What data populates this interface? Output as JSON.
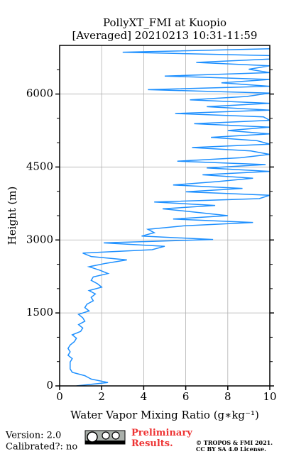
{
  "chart_data": {
    "type": "line",
    "title": "PollyXT_FMI at Kuopio",
    "subtitle": "[Averaged] 20210213 10:31-11:59",
    "xlabel": "Water Vapor Mixing Ratio (g∗kg⁻¹)",
    "ylabel": "Height (m)",
    "xlim": [
      0,
      10
    ],
    "xticks": [
      0,
      2,
      4,
      6,
      8,
      10
    ],
    "ylim": [
      0,
      7000
    ],
    "yticks": [
      0,
      1500,
      3000,
      4500,
      6000
    ],
    "yminorticks": [
      500,
      1000,
      2000,
      2500,
      3500,
      4000,
      5000,
      5500,
      6500
    ],
    "grid": true,
    "heights": [
      0,
      70,
      140,
      210,
      280,
      350,
      420,
      490,
      560,
      630,
      700,
      770,
      840,
      910,
      980,
      1050,
      1120,
      1190,
      1260,
      1330,
      1400,
      1470,
      1540,
      1610,
      1680,
      1750,
      1820,
      1890,
      1960,
      2030,
      2100,
      2170,
      2240,
      2310,
      2380,
      2450,
      2520,
      2590,
      2660,
      2730,
      2800,
      2870,
      2940,
      3010,
      3080,
      3150,
      3220,
      3290,
      3360,
      3430,
      3500,
      3570,
      3640,
      3710,
      3780,
      3850,
      3920,
      3990,
      4060,
      4130,
      4200,
      4270,
      4340,
      4410,
      4480,
      4550,
      4620,
      4690,
      4760,
      4830,
      4900,
      4970,
      5040,
      5110,
      5180,
      5250,
      5320,
      5390,
      5460,
      5530,
      5600,
      5670,
      5740,
      5810,
      5880,
      5950,
      6020,
      6090,
      6160,
      6230,
      6300,
      6370,
      6440,
      6510,
      6580,
      6650,
      6720,
      6790,
      6860,
      6930
    ],
    "series": [
      {
        "color": "#1e90ff",
        "values": [
          0.8,
          2.3,
          1.5,
          1.2,
          0.6,
          0.5,
          0.5,
          0.5,
          0.6,
          0.4,
          0.5,
          0.4,
          0.5,
          0.7,
          0.8,
          0.6,
          1.0,
          1.1,
          0.9,
          1.2,
          1.1,
          0.9,
          1.4,
          1.2,
          1.3,
          1.6,
          1.5,
          1.7,
          1.4,
          2.0,
          1.8,
          1.5,
          1.6,
          2.3,
          1.9,
          1.4,
          2.2,
          3.2,
          1.5,
          1.1,
          4.4,
          5.0,
          2.1,
          7.3,
          3.9,
          4.5,
          4.2,
          5.9,
          9.2,
          5.4,
          8.0,
          6.5,
          4.9,
          7.4,
          4.5,
          9.5,
          10,
          6.0,
          8.7,
          5.4,
          7.5,
          9.2,
          6.8,
          10,
          7.0,
          9.8,
          5.6,
          8.6,
          10,
          9.1,
          6.3,
          10,
          9.4,
          7.2,
          10,
          8.0,
          10,
          6.4,
          10,
          9.7,
          5.5,
          10,
          7.0,
          10,
          6.2,
          8.9,
          10,
          4.2,
          10,
          7.7,
          10,
          5.0,
          10,
          9.0,
          10,
          6.5,
          10,
          10,
          3.0,
          10
        ]
      }
    ]
  },
  "footer": {
    "version": "Version: 2.0",
    "calibrated": "Calibrated?: no",
    "status": "Preliminary Results.",
    "copyright": "© TROPOS & FMI 2021.",
    "license": "CC BY SA 4.0 License."
  }
}
